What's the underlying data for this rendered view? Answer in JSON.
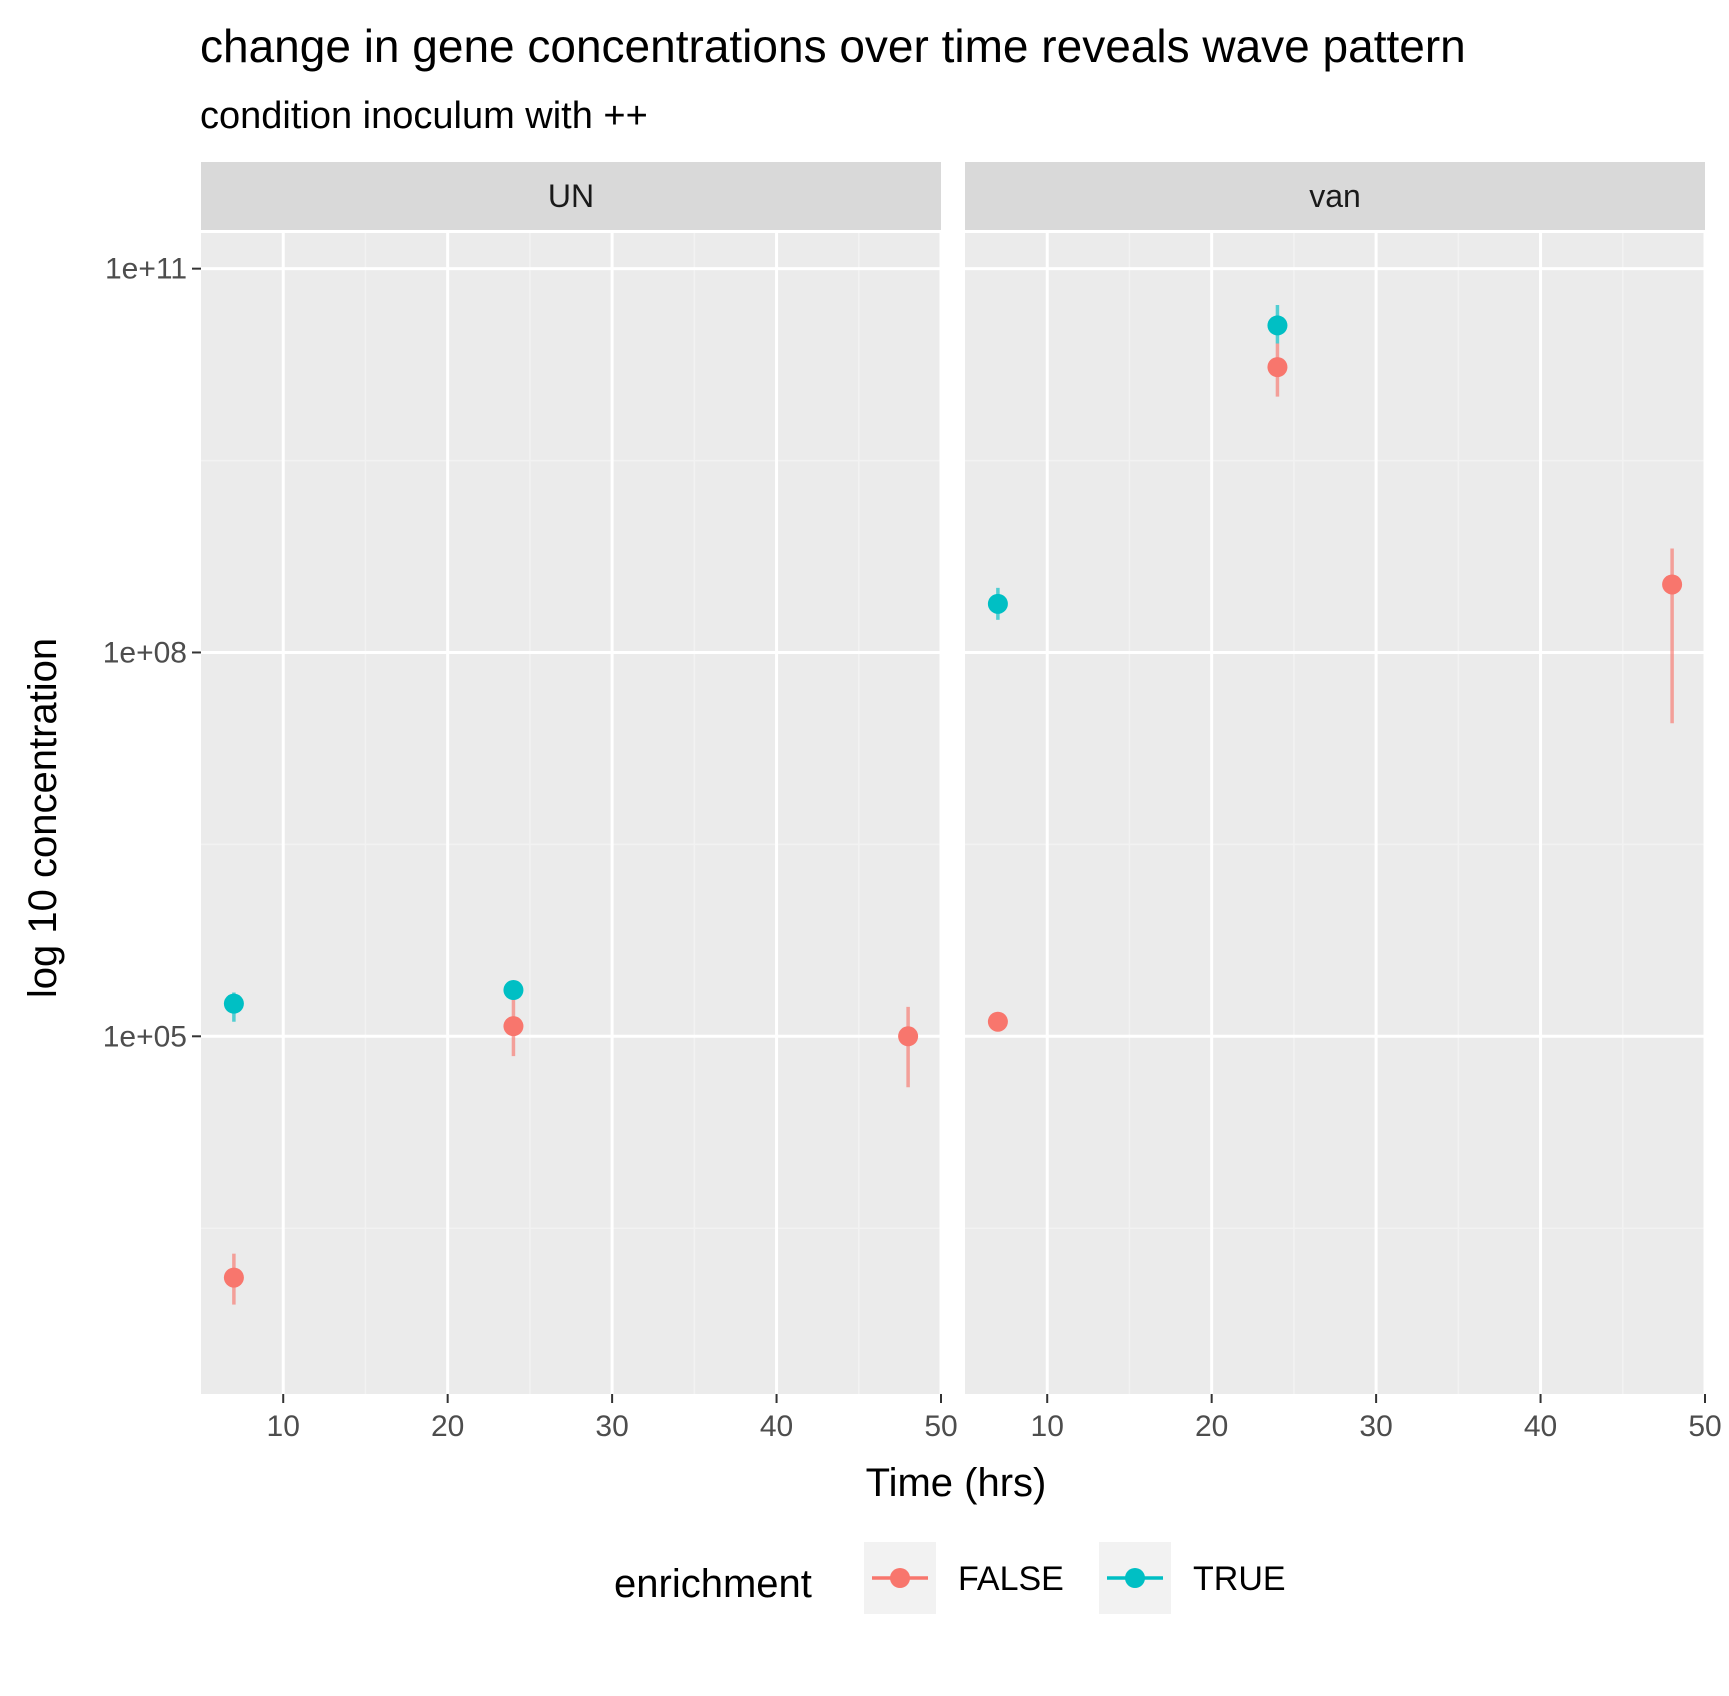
{
  "chart_data": {
    "type": "scatter",
    "title": "change in gene concentrations over time reveals wave pattern",
    "subtitle": "condition inoculum with ++",
    "xlabel": "Time (hrs)",
    "ylabel": "log 10 concentration",
    "y_scale": "log10",
    "ylim": [
      160,
      190000000000.0
    ],
    "xlim": [
      5,
      50
    ],
    "x_ticks": [
      10,
      20,
      30,
      40,
      50
    ],
    "x_tick_labels": [
      "10",
      "20",
      "30",
      "40",
      "50"
    ],
    "y_ticks": [
      100000.0,
      100000000.0,
      100000000000.0
    ],
    "y_tick_labels": [
      "1e+05",
      "1e+08",
      "1e+11"
    ],
    "grid": true,
    "legend": {
      "title": "enrichment",
      "position": "bottom",
      "entries": [
        {
          "label": "FALSE",
          "color": "#F8766D"
        },
        {
          "label": "TRUE",
          "color": "#00BFC4"
        }
      ]
    },
    "facets": [
      {
        "label": "UN",
        "series": [
          {
            "name": "FALSE",
            "points": [
              {
                "x": 7,
                "y": 1300,
                "ymin": 800,
                "ymax": 2000
              },
              {
                "x": 24,
                "y": 120000,
                "ymin": 70000,
                "ymax": 210000
              },
              {
                "x": 48,
                "y": 100000,
                "ymin": 40000,
                "ymax": 170000
              }
            ]
          },
          {
            "name": "TRUE",
            "points": [
              {
                "x": 7,
                "y": 180000,
                "ymin": 130000,
                "ymax": 220000
              },
              {
                "x": 24,
                "y": 230000,
                "ymin": 200000,
                "ymax": 260000
              }
            ]
          }
        ]
      },
      {
        "label": "van",
        "series": [
          {
            "name": "FALSE",
            "points": [
              {
                "x": 7,
                "y": 130000,
                "ymin": 120000,
                "ymax": 140000
              },
              {
                "x": 24,
                "y": 17000000000,
                "ymin": 10000000000,
                "ymax": 26000000000
              },
              {
                "x": 48,
                "y": 340000000,
                "ymin": 28000000,
                "ymax": 650000000
              }
            ]
          },
          {
            "name": "TRUE",
            "points": [
              {
                "x": 7,
                "y": 240000000,
                "ymin": 180000000,
                "ymax": 320000000
              },
              {
                "x": 24,
                "y": 36000000000,
                "ymin": 26000000000,
                "ymax": 52000000000
              }
            ]
          }
        ]
      }
    ]
  },
  "colors": {
    "FALSE": "#F8766D",
    "TRUE": "#00BFC4",
    "panel_bg": "#EBEBEB",
    "strip_bg": "#D9D9D9",
    "grid_major": "#FFFFFF",
    "grid_minor": "#F2F2F2"
  }
}
